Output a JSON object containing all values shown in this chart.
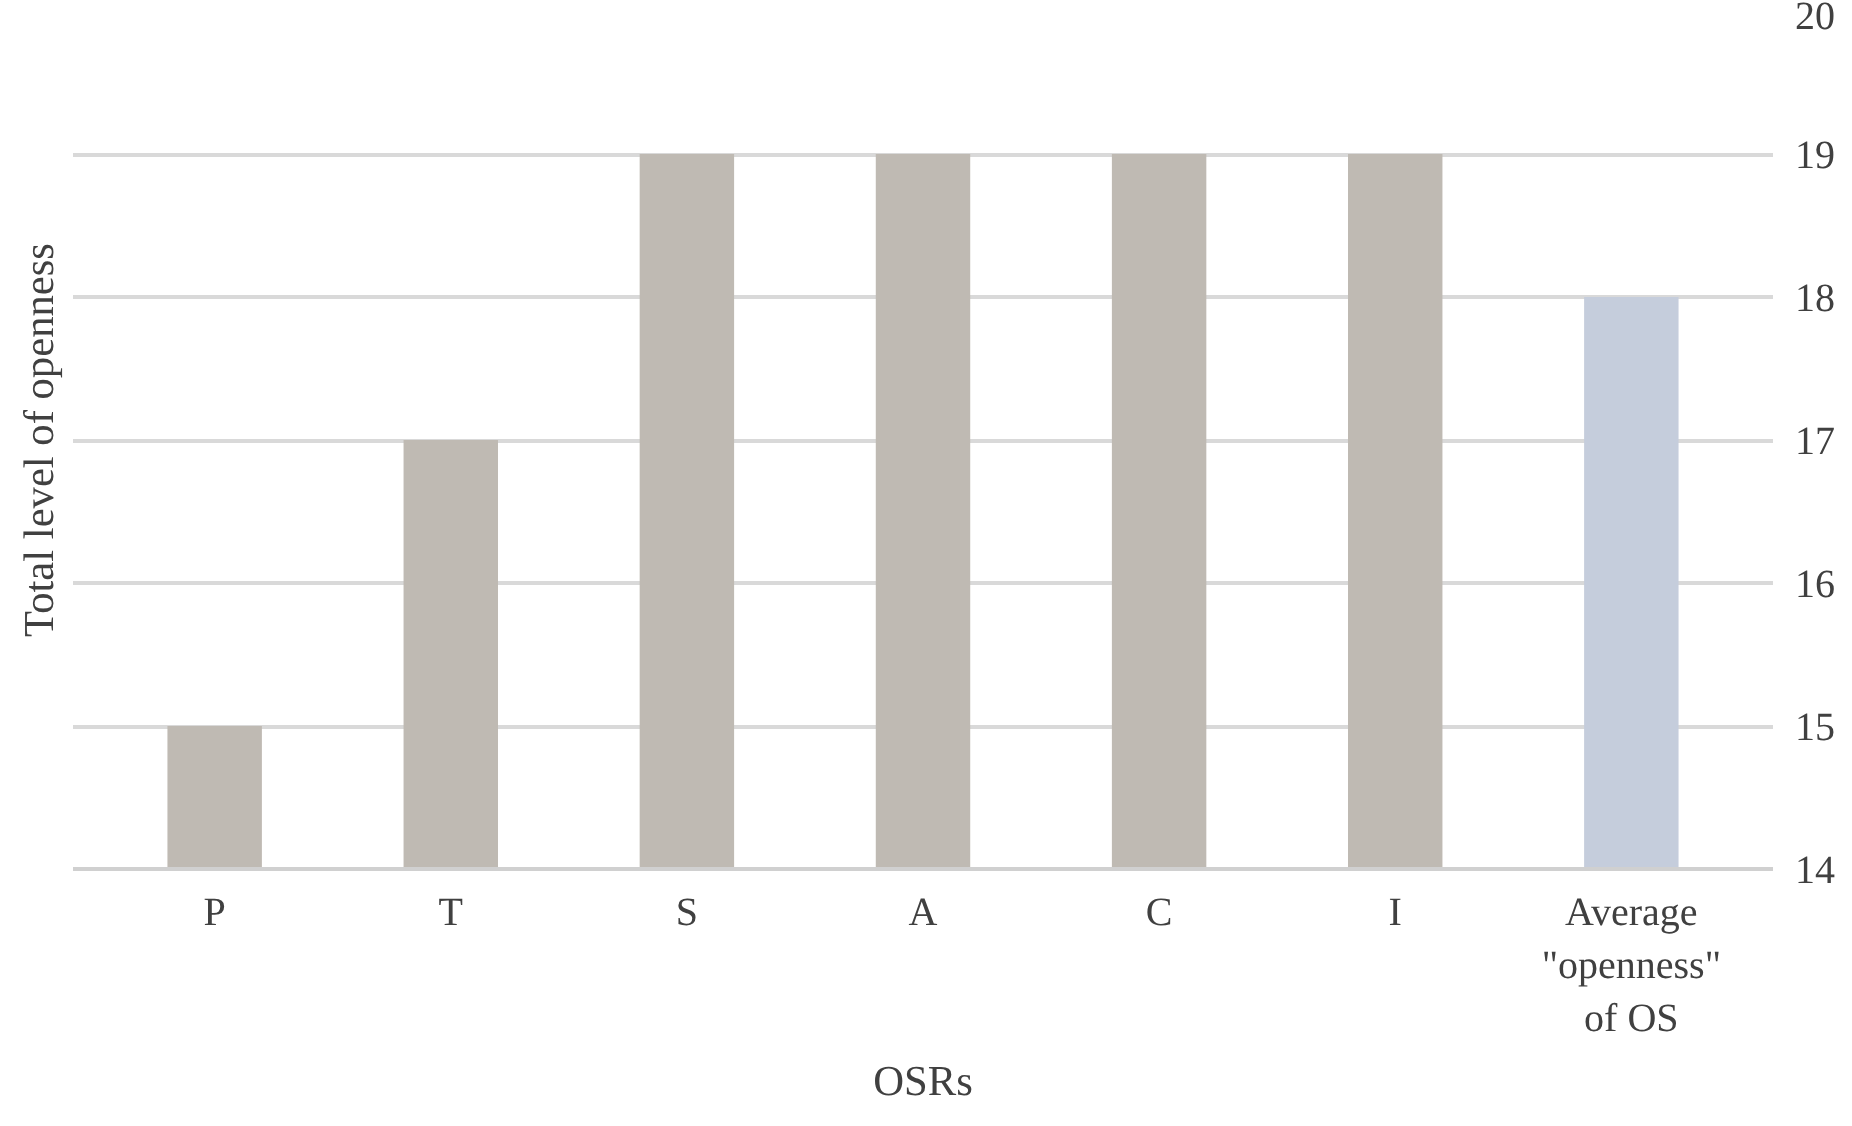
{
  "chart_data": {
    "type": "bar",
    "xlabel": "OSRs",
    "ylabel": "Total level of openness",
    "categories": [
      "P",
      "T",
      "S",
      "A",
      "C",
      "I",
      "Average \"openness\" of OS"
    ],
    "values": [
      15,
      17,
      19,
      19,
      19,
      19,
      18
    ],
    "colors": [
      "#bfbab3",
      "#bfbab3",
      "#bfbab3",
      "#bfbab3",
      "#bfbab3",
      "#bfbab3",
      "#c5cddc"
    ],
    "ylim": [
      14,
      20
    ],
    "yticks": [
      14,
      15,
      16,
      17,
      18,
      19,
      20
    ],
    "grid": "y"
  }
}
